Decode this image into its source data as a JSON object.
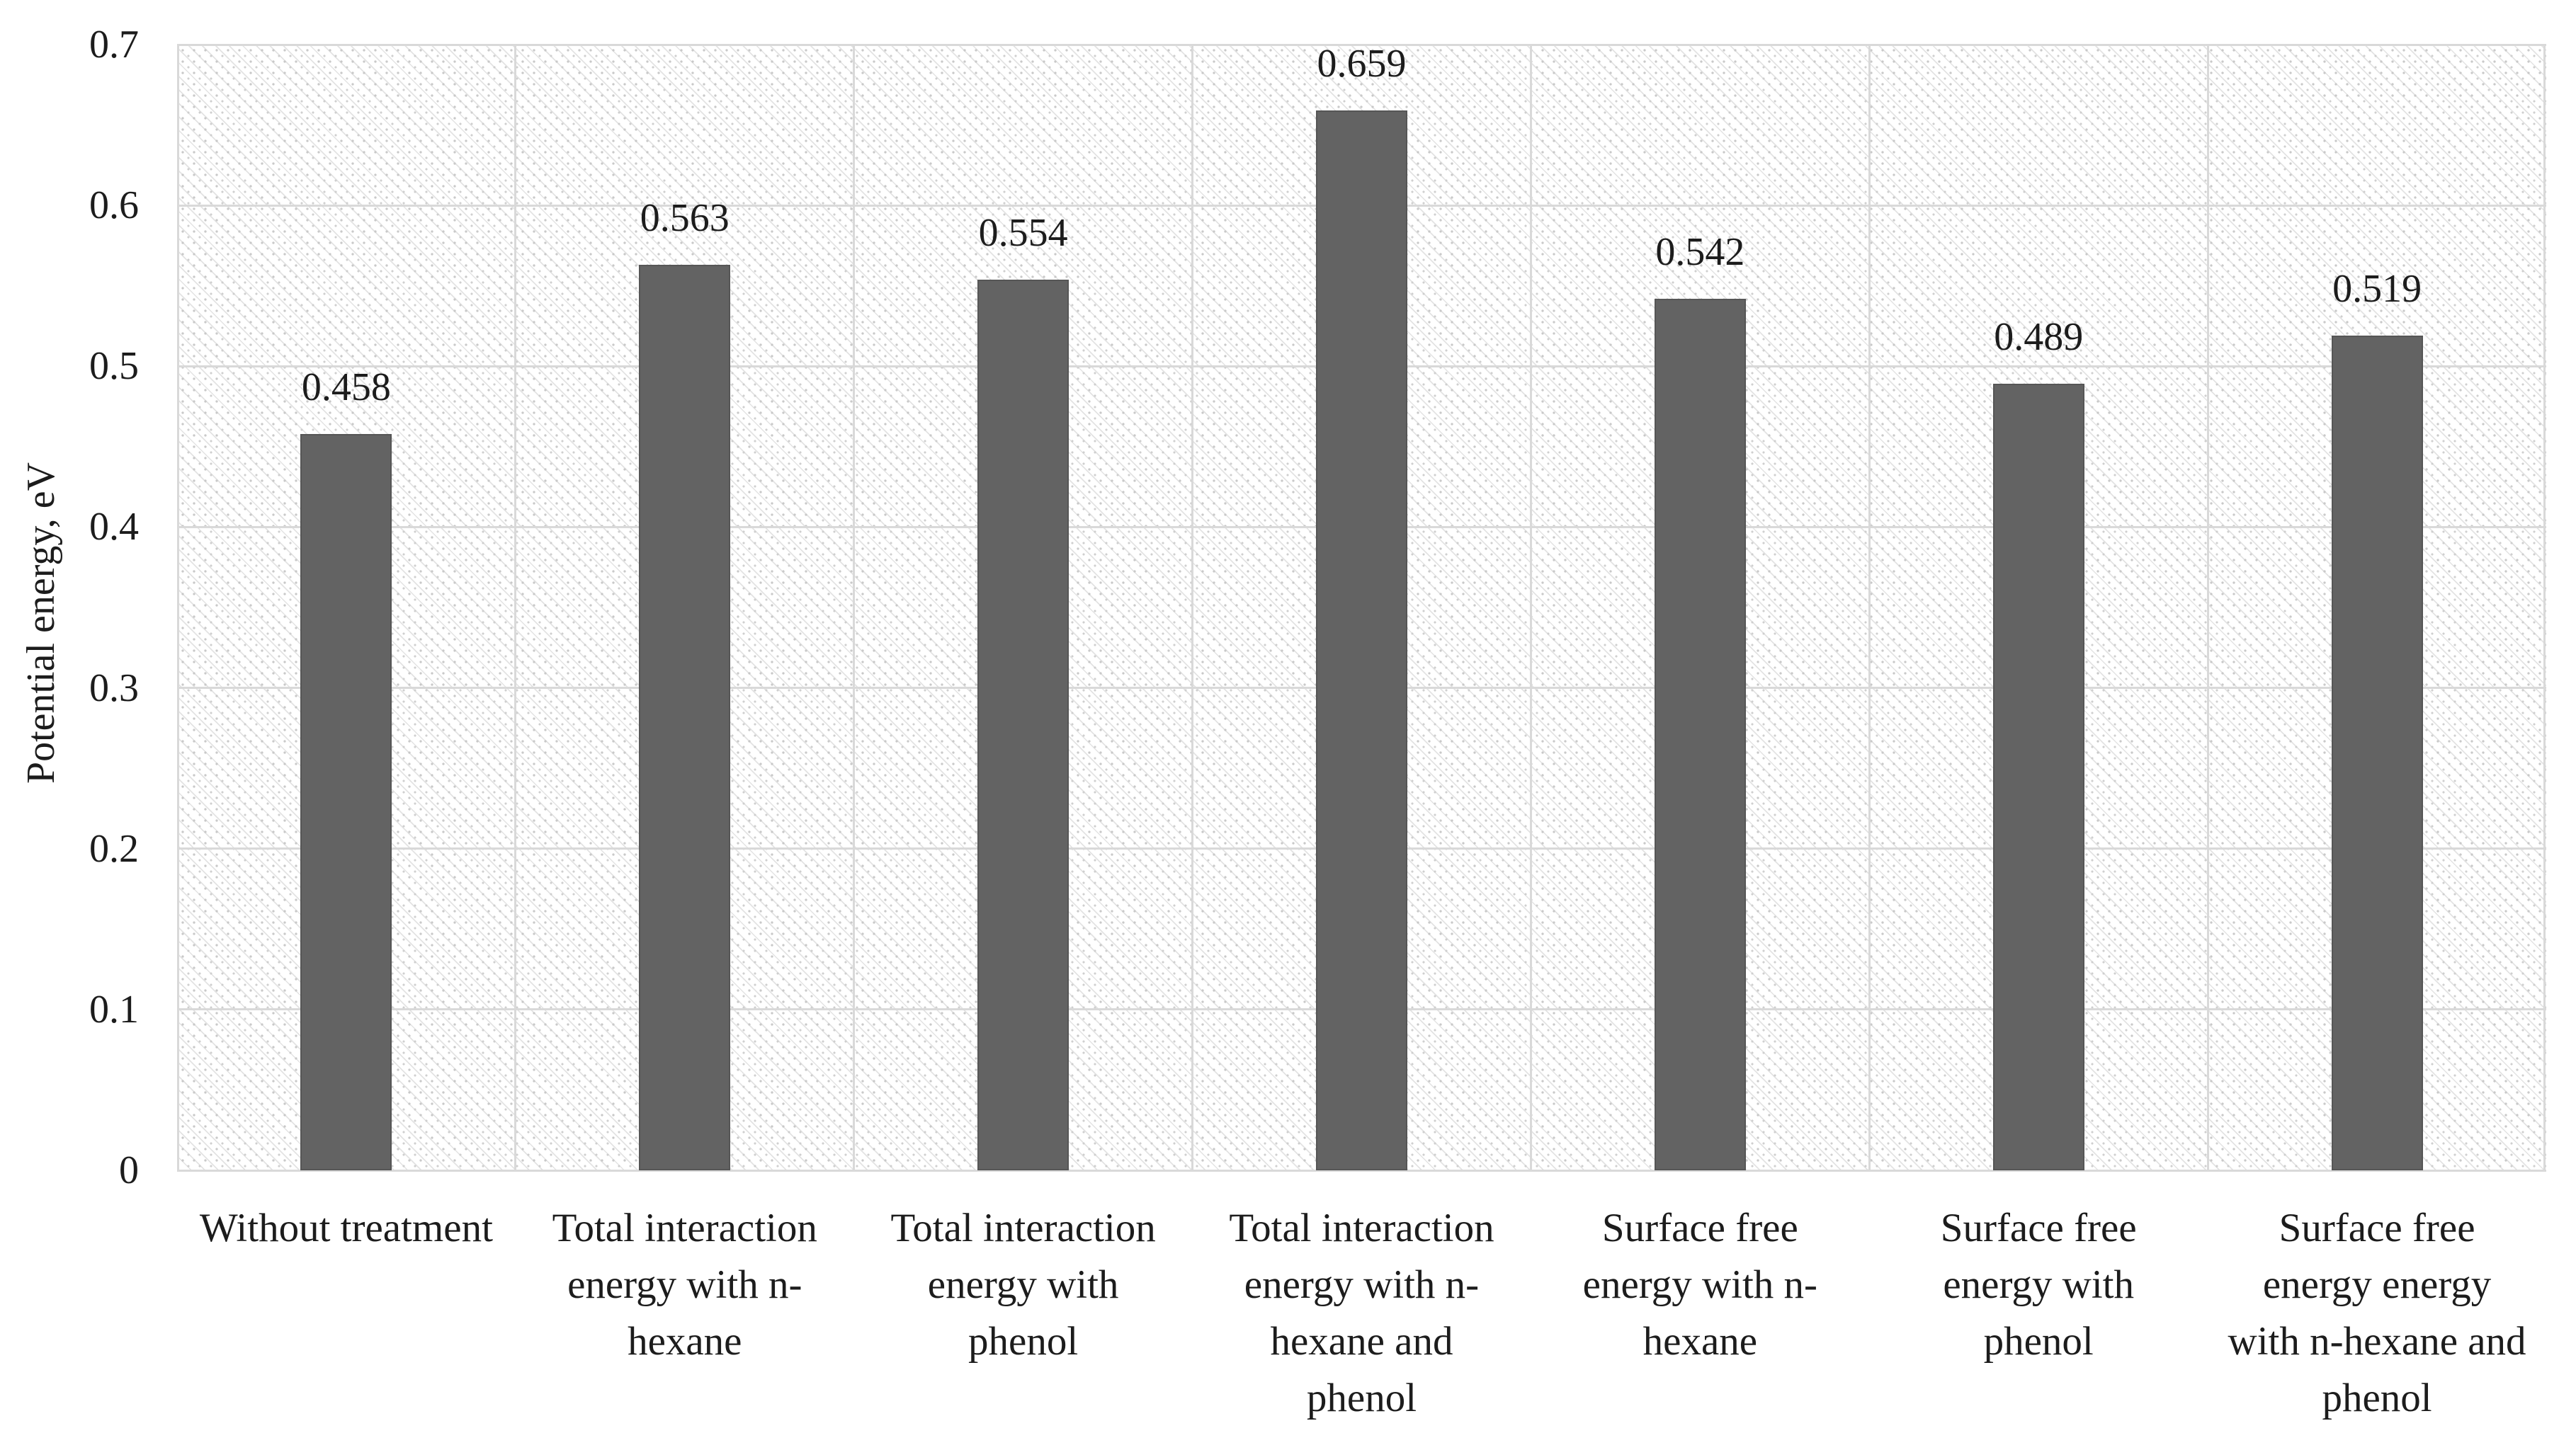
{
  "chart_data": {
    "type": "bar",
    "title": "",
    "ylabel": "Potential energy, eV",
    "xlabel": "",
    "ylim": [
      0,
      0.7
    ],
    "yticks": [
      0,
      0.1,
      0.2,
      0.3,
      0.4,
      0.5,
      0.6,
      0.7
    ],
    "ytick_labels": [
      "0",
      "0.1",
      "0.2",
      "0.3",
      "0.4",
      "0.5",
      "0.6",
      "0.7"
    ],
    "grid": "horizontal gridlines every 0.1 plus vertical category-boundary gridlines",
    "legend_position": "none",
    "plot_background": "light diagonal hatch pattern",
    "categories": [
      "Without treatment",
      "Total interaction energy with n-hexane",
      "Total interaction energy with phenol",
      "Total interaction energy with n-hexane and phenol",
      "Surface free energy with n-hexane",
      "Surface free energy with phenol",
      "Surface free energy energy with n-hexane and phenol"
    ],
    "category_label_lines": [
      [
        "Without treatment"
      ],
      [
        "Total interaction",
        "energy with n-",
        "hexane"
      ],
      [
        "Total interaction",
        "energy with",
        "phenol"
      ],
      [
        "Total interaction",
        "energy with n-",
        "hexane and",
        "phenol"
      ],
      [
        "Surface free",
        "energy with n-",
        "hexane"
      ],
      [
        "Surface free",
        "energy with",
        "phenol"
      ],
      [
        "Surface free",
        "energy energy",
        "with n-hexane and",
        "phenol"
      ]
    ],
    "values": [
      0.458,
      0.563,
      0.554,
      0.659,
      0.542,
      0.489,
      0.519
    ],
    "value_labels": [
      "0.458",
      "0.563",
      "0.554",
      "0.659",
      "0.542",
      "0.489",
      "0.519"
    ],
    "bar_color": "#636363",
    "bar_border_color": "#565656",
    "gridline_color": "#d9d9d9",
    "pattern_line_color": "#e3e3e3",
    "pattern_dot_color": "#c9c9c9",
    "text_color": "#1c1c1c"
  }
}
